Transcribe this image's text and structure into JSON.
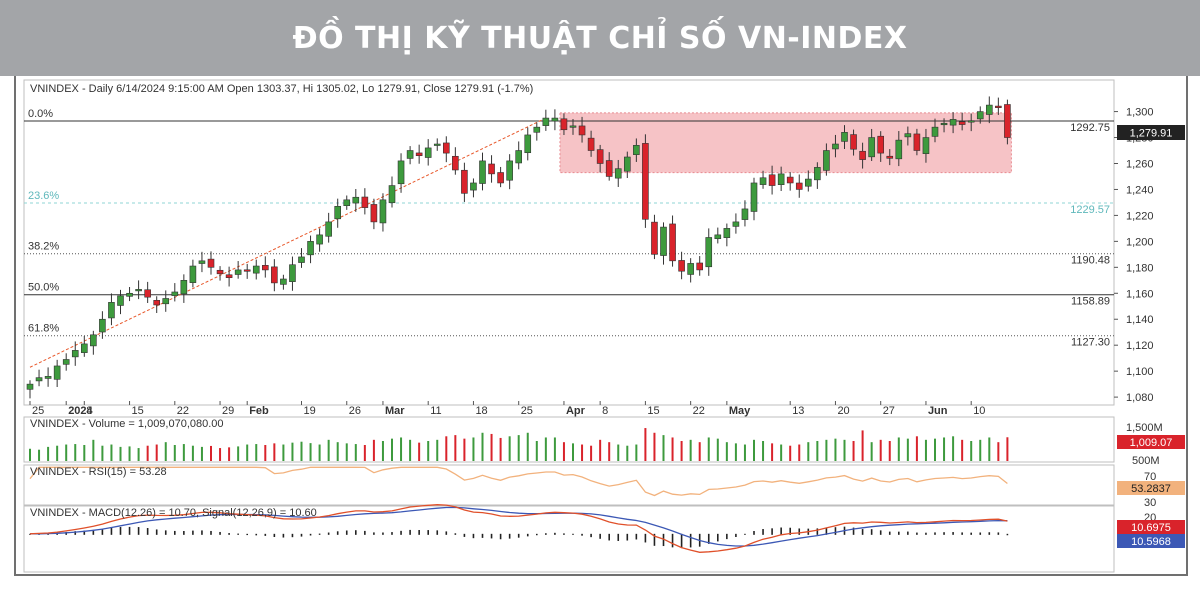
{
  "banner": {
    "title": "ĐỒ THỊ KỸ THUẬT CHỈ SỐ VN-INDEX"
  },
  "colors": {
    "up": "#3d9a3d",
    "down": "#d9232b",
    "zone": "#f6c3c6",
    "rsi": "#f2b27d",
    "macd": "#e0502a",
    "signal": "#3c58b5",
    "fib_dash": "#8fd4d6",
    "trend": "#e8582b"
  },
  "chart_data": {
    "type": "candlestick",
    "header": "VNINDEX - Daily 6/14/2024 9:15:00 AM Open 1303.37, Hi 1305.02, Lo 1279.91, Close 1279.91 (-1.7%)",
    "y_ticks": [
      "1,300",
      "1,280",
      "1,260",
      "1,240",
      "1,220",
      "1,200",
      "1,180",
      "1,160",
      "1,140",
      "1,120",
      "1,100",
      "1,080"
    ],
    "ylim": [
      1077,
      1312
    ],
    "x_ticks": [
      {
        "label": "25",
        "i": 0
      },
      {
        "label": "2024",
        "i": 4
      },
      {
        "label": "8",
        "i": 6
      },
      {
        "label": "15",
        "i": 11
      },
      {
        "label": "22",
        "i": 16
      },
      {
        "label": "29",
        "i": 21
      },
      {
        "label": "Feb",
        "i": 24
      },
      {
        "label": "19",
        "i": 30
      },
      {
        "label": "26",
        "i": 35
      },
      {
        "label": "Mar",
        "i": 39
      },
      {
        "label": "11",
        "i": 44
      },
      {
        "label": "18",
        "i": 49
      },
      {
        "label": "25",
        "i": 54
      },
      {
        "label": "Apr",
        "i": 59
      },
      {
        "label": "8",
        "i": 63
      },
      {
        "label": "15",
        "i": 68
      },
      {
        "label": "22",
        "i": 73
      },
      {
        "label": "May",
        "i": 77
      },
      {
        "label": "13",
        "i": 84
      },
      {
        "label": "20",
        "i": 89
      },
      {
        "label": "27",
        "i": 94
      },
      {
        "label": "Jun",
        "i": 99
      },
      {
        "label": "10",
        "i": 104
      }
    ],
    "last_price_label": "1,279.91",
    "fib_levels": [
      {
        "pct": "0.0%",
        "value": 1292.75,
        "label": "1292.75",
        "style": "solid"
      },
      {
        "pct": "23.6%",
        "value": 1229.57,
        "label": "1229.57",
        "style": "dashed-cyan"
      },
      {
        "pct": "38.2%",
        "value": 1190.48,
        "label": "1190.48",
        "style": "dotted"
      },
      {
        "pct": "50.0%",
        "value": 1158.89,
        "label": "1158.89",
        "style": "solid"
      },
      {
        "pct": "61.8%",
        "value": 1127.3,
        "label": "1127.30",
        "style": "dotted"
      }
    ],
    "resistance_zone": {
      "from_i": 59,
      "to_i": 108,
      "low": 1253,
      "high": 1299
    },
    "trendline": {
      "from": {
        "i": 0,
        "value": 1103
      },
      "to": {
        "i": 57,
        "value": 1295
      }
    },
    "close": [
      1090,
      1095,
      1096,
      1104,
      1109,
      1116,
      1121,
      1128,
      1140,
      1153,
      1158,
      1160,
      1163,
      1157,
      1151,
      1156,
      1161,
      1170,
      1181,
      1185,
      1180,
      1175,
      1172,
      1178,
      1178,
      1181,
      1178,
      1168,
      1171,
      1182,
      1188,
      1200,
      1205,
      1215,
      1227,
      1232,
      1234,
      1226,
      1215,
      1232,
      1243,
      1262,
      1270,
      1266,
      1272,
      1275,
      1268,
      1255,
      1237,
      1245,
      1262,
      1252,
      1245,
      1262,
      1270,
      1282,
      1288,
      1295,
      1295,
      1286,
      1289,
      1282,
      1270,
      1260,
      1250,
      1256,
      1265,
      1274,
      1217,
      1190,
      1211,
      1185,
      1177,
      1183,
      1178,
      1203,
      1205,
      1210,
      1215,
      1225,
      1245,
      1249,
      1243,
      1252,
      1245,
      1240,
      1248,
      1257,
      1270,
      1275,
      1284,
      1271,
      1263,
      1280,
      1268,
      1264,
      1278,
      1283,
      1270,
      1280,
      1288,
      1291,
      1294,
      1290,
      1293,
      1300,
      1305,
      1303,
      1280
    ]
  },
  "volume": {
    "label": "VNINDEX - Volume = 1,009,070,080.00",
    "ticks": [
      "1,500M",
      "500M"
    ],
    "last_label": "1,009.07",
    "values": [
      520,
      480,
      600,
      650,
      700,
      720,
      680,
      900,
      650,
      700,
      600,
      620,
      550,
      650,
      700,
      800,
      680,
      720,
      650,
      600,
      640,
      550,
      580,
      620,
      700,
      720,
      680,
      750,
      700,
      780,
      820,
      760,
      700,
      900,
      800,
      750,
      720,
      680,
      900,
      850,
      950,
      1000,
      900,
      780,
      850,
      900,
      1050,
      1100,
      950,
      1000,
      1200,
      1150,
      980,
      1050,
      1100,
      1200,
      850,
      1000,
      1000,
      800,
      750,
      700,
      650,
      900,
      800,
      700,
      650,
      700,
      1400,
      1200,
      1100,
      1000,
      850,
      900,
      800,
      1000,
      950,
      800,
      750,
      700,
      900,
      850,
      750,
      700,
      650,
      700,
      800,
      850,
      900,
      950,
      900,
      850,
      1300,
      800,
      900,
      850,
      1000,
      950,
      1050,
      900,
      950,
      1000,
      1050,
      900,
      850,
      900,
      1000,
      800,
      1009
    ]
  },
  "rsi": {
    "label": "VNINDEX - RSI(15) = 53.28",
    "ticks": [
      "70",
      "30"
    ],
    "last_label": "53.2837",
    "ylim": [
      20,
      80
    ]
  },
  "macd": {
    "label": "VNINDEX - MACD(12.26) = 10.70, Signal(12,26,9) = 10.60",
    "ticks": [
      "20",
      "0"
    ],
    "macd_last_label": "10.6975",
    "signal_last_label": "10.5968",
    "ylim": [
      -35,
      25
    ]
  }
}
